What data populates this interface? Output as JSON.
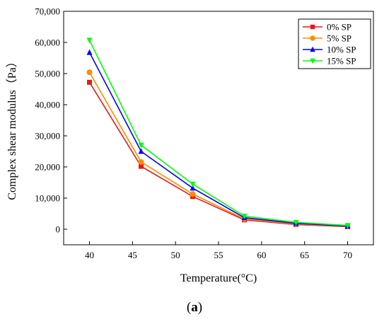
{
  "caption": {
    "open": "(",
    "letter": "a",
    "close": ")"
  },
  "chart_data": {
    "type": "line",
    "xlabel": "Temperature(°C)",
    "ylabel": "Complex shear modulus（Pa）",
    "x": [
      40,
      46,
      52,
      58,
      64,
      70
    ],
    "xlim": [
      37,
      73
    ],
    "ylim": [
      -5000,
      70000
    ],
    "xticks": [
      40,
      45,
      50,
      55,
      60,
      65,
      70
    ],
    "yticks": [
      0,
      10000,
      20000,
      30000,
      40000,
      50000,
      60000,
      70000
    ],
    "ytick_labels": [
      "0",
      "10,000",
      "20,000",
      "30,000",
      "40,000",
      "50,000",
      "60,000",
      "70,000"
    ],
    "grid": false,
    "legend_position": "top-right",
    "series": [
      {
        "name": "0% SP",
        "color": "#e41a1c",
        "marker": "square",
        "values": [
          47200,
          20200,
          10500,
          3000,
          1500,
          800
        ]
      },
      {
        "name": "5% SP",
        "color": "#ff8c00",
        "marker": "circle",
        "values": [
          50400,
          21600,
          11300,
          3300,
          1700,
          900
        ]
      },
      {
        "name": "10% SP",
        "color": "#0000ff",
        "marker": "triangle-up",
        "values": [
          56800,
          25000,
          13200,
          3700,
          1900,
          1000
        ]
      },
      {
        "name": "15% SP",
        "color": "#00ff00",
        "marker": "triangle-down",
        "values": [
          60700,
          27000,
          14500,
          4200,
          2200,
          1200
        ]
      }
    ]
  }
}
